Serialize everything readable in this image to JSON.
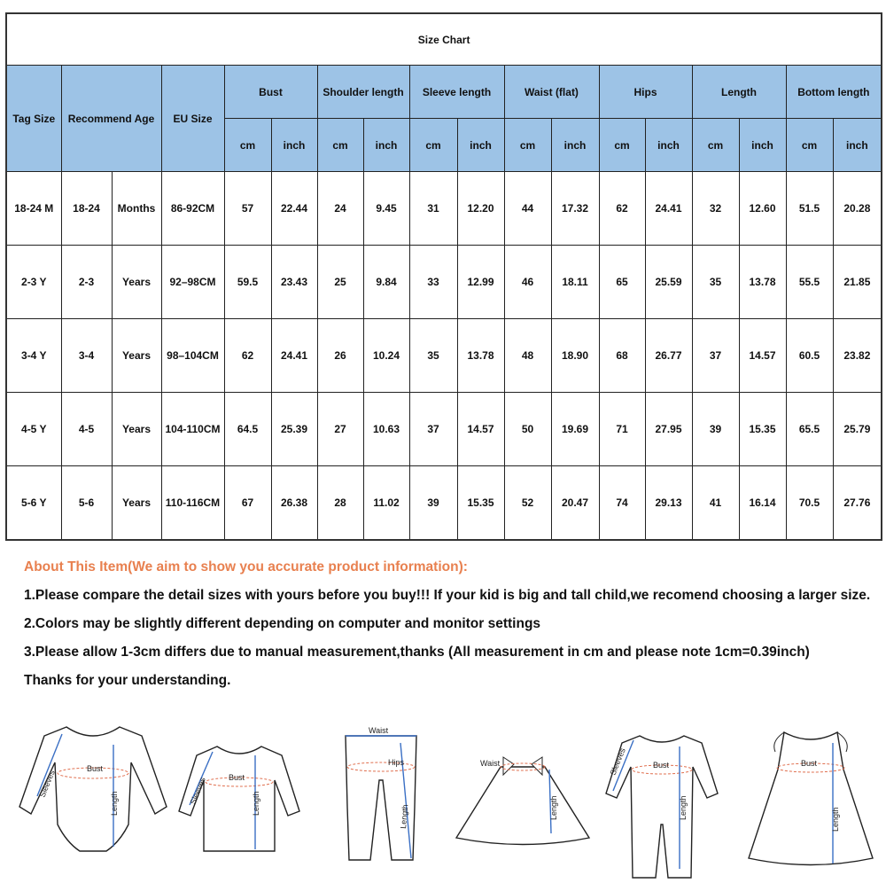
{
  "table": {
    "title": "Size Chart",
    "headers": {
      "tag_size": "Tag Size",
      "recommend_age": "Recommend Age",
      "eu_size": "EU Size",
      "groups": [
        "Bust",
        "Shoulder length",
        "Sleeve length",
        "Waist  (flat)",
        "Hips",
        "Length",
        "Bottom length"
      ],
      "units": [
        "cm",
        "inch"
      ]
    },
    "rows": [
      {
        "tag": "18-24 M",
        "age": "18-24",
        "age_unit": "Months",
        "eu": "86-92CM",
        "values": [
          "57",
          "22.44",
          "24",
          "9.45",
          "31",
          "12.20",
          "44",
          "17.32",
          "62",
          "24.41",
          "32",
          "12.60",
          "51.5",
          "20.28"
        ]
      },
      {
        "tag": "2-3 Y",
        "age": "2-3",
        "age_unit": "Years",
        "eu": "92–98CM",
        "values": [
          "59.5",
          "23.43",
          "25",
          "9.84",
          "33",
          "12.99",
          "46",
          "18.11",
          "65",
          "25.59",
          "35",
          "13.78",
          "55.5",
          "21.85"
        ]
      },
      {
        "tag": "3-4 Y",
        "age": "3-4",
        "age_unit": "Years",
        "eu": "98–104CM",
        "values": [
          "62",
          "24.41",
          "26",
          "10.24",
          "35",
          "13.78",
          "48",
          "18.90",
          "68",
          "26.77",
          "37",
          "14.57",
          "60.5",
          "23.82"
        ]
      },
      {
        "tag": "4-5 Y",
        "age": "4-5",
        "age_unit": "Years",
        "eu": "104-110CM",
        "values": [
          "64.5",
          "25.39",
          "27",
          "10.63",
          "37",
          "14.57",
          "50",
          "19.69",
          "71",
          "27.95",
          "39",
          "15.35",
          "65.5",
          "25.79"
        ]
      },
      {
        "tag": "5-6 Y",
        "age": "5-6",
        "age_unit": "Years",
        "eu": "110-116CM",
        "values": [
          "67",
          "26.38",
          "28",
          "11.02",
          "39",
          "15.35",
          "52",
          "20.47",
          "74",
          "29.13",
          "41",
          "16.14",
          "70.5",
          "27.76"
        ]
      }
    ]
  },
  "notes": {
    "about": "About This Item(We aim to show you accurate product information):",
    "items": [
      "1.Please compare the detail sizes with yours before you buy!!! If your kid is big and tall child,we recomend choosing a larger size.",
      "2.Colors may be slightly different depending on computer and monitor settings",
      "3.Please allow 1-3cm differs due to manual measurement,thanks (All measurement in cm and please note 1cm=0.39inch)"
    ],
    "thanks": "Thanks for your understanding."
  },
  "garments": {
    "bodysuit": {
      "sleeves": "Sleeves",
      "bust": "Bust",
      "length": "Length"
    },
    "tshirt": {
      "sleeves": "Sleeves",
      "bust": "Bust",
      "length": "Length"
    },
    "pants": {
      "waist": "Waist",
      "hips": "Hips",
      "length": "Length"
    },
    "tutu_skirt": {
      "waist": "Waist",
      "length": "Length"
    },
    "romper": {
      "sleeves": "Sleeves",
      "bust": "Bust",
      "length": "Length"
    },
    "dress": {
      "bust": "Bust",
      "length": "Length"
    }
  },
  "colors": {
    "header_bg": "#9dc3e6",
    "about_text": "#e8804f",
    "measure_line": "#3a6fc4",
    "measure_ellipse": "#e07050"
  }
}
